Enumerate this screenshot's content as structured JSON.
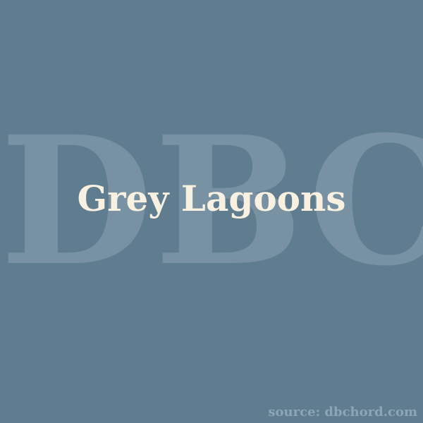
{
  "watermark": "DBC",
  "title": "Grey Lagoons",
  "source": "source: dbchord.com",
  "colors": {
    "background": "#5f7d8f",
    "watermark": "#7892a3",
    "title": "#f8f1e1",
    "source": "#8ea5b3"
  }
}
